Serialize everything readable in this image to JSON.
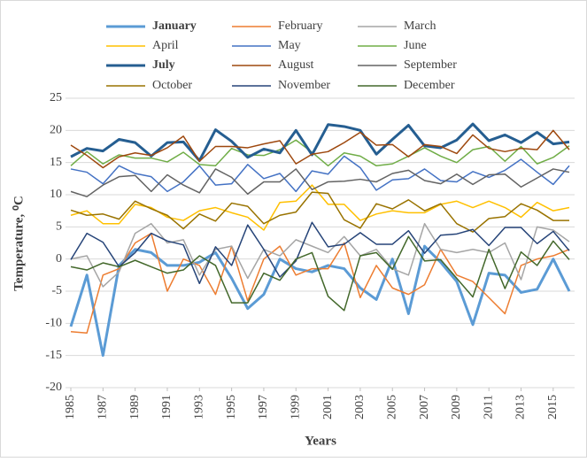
{
  "chart_data": {
    "type": "line",
    "x_label": "Years",
    "y_label": "Temperature, ⁰C",
    "x": [
      1985,
      1986,
      1987,
      1988,
      1989,
      1990,
      1991,
      1992,
      1993,
      1994,
      1995,
      1996,
      1997,
      1998,
      1999,
      2000,
      2001,
      2002,
      2003,
      2004,
      2005,
      2006,
      2007,
      2008,
      2009,
      2010,
      2011,
      2012,
      2013,
      2014,
      2015,
      2016
    ],
    "xlim": [
      1985,
      2016
    ],
    "xticks": [
      1985,
      1987,
      1989,
      1991,
      1993,
      1995,
      1997,
      1999,
      2001,
      2003,
      2005,
      2007,
      2009,
      2011,
      2013,
      2015
    ],
    "ylim": [
      -20,
      25
    ],
    "yticks": [
      -20,
      -15,
      -10,
      -5,
      0,
      5,
      10,
      15,
      20,
      25
    ],
    "grid": true,
    "legend": "top",
    "series": [
      {
        "name": "January",
        "color": "#5b9bd5",
        "width": 3,
        "values": [
          -10.5,
          -2.5,
          -15,
          -1,
          1.5,
          1,
          -1,
          -1,
          -0.5,
          1,
          -3,
          -7.7,
          -5.5,
          0,
          -1.5,
          -2,
          -1,
          -1.5,
          -4.5,
          -6.3,
          0,
          -8.5,
          2,
          -0.5,
          -3.5,
          -10.2,
          -2.2,
          -2.5,
          -5.2,
          -4.7,
          0,
          -5
        ]
      },
      {
        "name": "February",
        "color": "#ed7d31",
        "width": 1.5,
        "values": [
          -11.3,
          -11.5,
          -2.5,
          -1.5,
          2.5,
          4,
          -5,
          0,
          -1,
          -5.5,
          2,
          -6.5,
          0,
          2,
          -2.5,
          -1.5,
          -1.5,
          2.5,
          -6,
          -1,
          -4.5,
          -5.5,
          -4,
          1.5,
          -2.5,
          -3.5,
          -6,
          -8.5,
          -1,
          0,
          0.5,
          1.5
        ]
      },
      {
        "name": "March",
        "color": "#a5a5a5",
        "width": 1.5,
        "values": [
          0,
          0.5,
          -4.3,
          -2,
          4,
          5.5,
          2.5,
          3,
          -2.5,
          1.5,
          2,
          -3,
          1.5,
          0.5,
          3,
          2,
          1,
          3.5,
          0.5,
          1.5,
          -1.5,
          -2.5,
          5.5,
          1.5,
          1,
          1.5,
          1,
          2.5,
          -3.2,
          5,
          4.5,
          2.7
        ]
      },
      {
        "name": "April",
        "color": "#ffc000",
        "width": 1.5,
        "values": [
          6.8,
          7.5,
          5.5,
          5.5,
          8.5,
          8,
          6.5,
          6,
          7.5,
          8,
          7.2,
          6.5,
          4.5,
          8.8,
          9,
          11.5,
          8.5,
          8.5,
          6,
          7,
          7.5,
          7.2,
          7.2,
          8.5,
          9,
          8,
          9,
          8,
          6.5,
          8.8,
          7.5,
          8
        ]
      },
      {
        "name": "May",
        "color": "#4472c4",
        "width": 1.5,
        "values": [
          14,
          13.5,
          11.7,
          14.5,
          13.3,
          12.8,
          10.5,
          12,
          14.5,
          11.5,
          11.7,
          14.7,
          12.5,
          13.3,
          10.5,
          13.7,
          13.2,
          16,
          14.2,
          10.7,
          12.3,
          12.5,
          14,
          12.2,
          12,
          13.6,
          12.7,
          13.8,
          15.5,
          13.5,
          11.6,
          14.5
        ]
      },
      {
        "name": "June",
        "color": "#70ad47",
        "width": 1.5,
        "values": [
          14.5,
          16.7,
          14.8,
          16.2,
          15.7,
          15.7,
          15.1,
          16.6,
          14.7,
          14.5,
          17.2,
          16.2,
          16.1,
          17,
          18.5,
          16.6,
          14.5,
          16.5,
          16,
          14.5,
          14.8,
          16,
          17.3,
          16,
          15,
          17,
          17.5,
          15.2,
          17.5,
          14.8,
          15.8,
          17.6
        ]
      },
      {
        "name": "July",
        "color": "#255e91",
        "width": 3,
        "values": [
          15.9,
          17.2,
          16.8,
          18.6,
          18.1,
          16,
          18.1,
          18.2,
          15.3,
          20.1,
          18.3,
          15.8,
          17.1,
          16.5,
          20,
          16.2,
          20.9,
          20.6,
          20,
          16.3,
          18.6,
          20.8,
          17.6,
          17.3,
          18.5,
          21,
          18.4,
          19.3,
          18.1,
          19.7,
          17.9,
          18.2
        ]
      },
      {
        "name": "August",
        "color": "#9e480e",
        "width": 1.5,
        "values": [
          17.7,
          16.1,
          14.2,
          15.9,
          16.5,
          16.1,
          17.3,
          19.1,
          15.2,
          17.5,
          17.5,
          17.3,
          17.9,
          18.4,
          14.8,
          16.3,
          16.7,
          18.1,
          19.7,
          17.7,
          17.8,
          15.9,
          17.8,
          17.5,
          16.4,
          19.3,
          17.2,
          16.7,
          17.2,
          17,
          20,
          17
        ]
      },
      {
        "name": "September",
        "color": "#636363",
        "width": 1.5,
        "values": [
          10.5,
          9.7,
          11.5,
          12.8,
          13,
          10.5,
          13.1,
          11.5,
          10.3,
          14,
          12.7,
          10.1,
          12,
          12,
          14,
          10.8,
          12,
          12.1,
          12.4,
          12,
          13.3,
          13.8,
          12.2,
          11.7,
          13.2,
          11.6,
          13.1,
          13.2,
          11.2,
          12.6,
          14,
          13.5
        ]
      },
      {
        "name": "October",
        "color": "#997300",
        "width": 1.5,
        "values": [
          7.6,
          6.8,
          7,
          6.2,
          9,
          7.8,
          6.8,
          4.7,
          7,
          5.9,
          8.7,
          8.2,
          5.5,
          6.8,
          7.3,
          10.4,
          10.2,
          6.1,
          4.8,
          8.6,
          7.8,
          9.2,
          7.5,
          8.6,
          5.5,
          4.2,
          6.3,
          6.6,
          8.6,
          7.6,
          6,
          6
        ]
      },
      {
        "name": "November",
        "color": "#264478",
        "width": 1.5,
        "values": [
          -0.1,
          4,
          2.6,
          -1.2,
          1,
          4,
          2.8,
          2.2,
          -3.8,
          1.9,
          -1,
          5.3,
          1.5,
          -2.8,
          -0.3,
          5.7,
          1.9,
          2.3,
          4.1,
          2.3,
          2.3,
          4.4,
          0.9,
          3.7,
          3.9,
          4.6,
          2.1,
          4.9,
          4.9,
          2.4,
          4.3,
          1.3
        ]
      },
      {
        "name": "December",
        "color": "#43682b",
        "width": 1.5,
        "values": [
          -1.2,
          -1.7,
          -0.6,
          -1.2,
          -0.2,
          -1.2,
          -2.2,
          -1.7,
          0.5,
          -1,
          -6.8,
          -6.8,
          -2.2,
          -3.3,
          0,
          1,
          -5.8,
          -8,
          0.5,
          1,
          -1.6,
          3.5,
          -0.3,
          -0.1,
          -3,
          -5.9,
          1.5,
          -4.6,
          1.1,
          -1,
          2.8,
          -0.1
        ]
      }
    ]
  }
}
